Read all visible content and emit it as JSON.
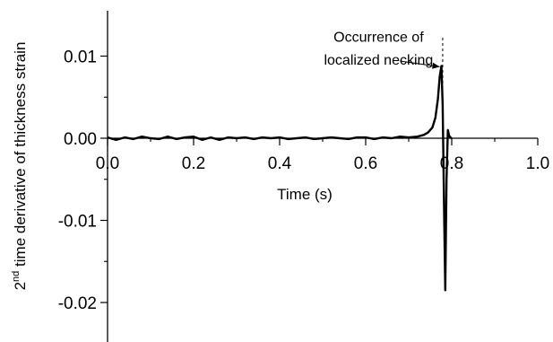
{
  "chart_data": {
    "type": "line",
    "xlabel": "Time (s)",
    "ylabel": {
      "prefix": "2",
      "superscript": "nd",
      "suffix": " time derivative of thickness strain"
    },
    "xlim": [
      0.0,
      1.0
    ],
    "ylim": [
      -0.0235,
      0.0155
    ],
    "x_ticks": [
      0.0,
      0.2,
      0.4,
      0.6,
      0.8,
      1.0
    ],
    "x_tick_labels": [
      "0.0",
      "0.2",
      "0.4",
      "0.6",
      "0.8",
      "1.0"
    ],
    "y_ticks": [
      0.01,
      0.0,
      -0.01,
      -0.02
    ],
    "y_tick_labels": [
      "0.01",
      "0.00",
      "-0.01",
      "-0.02"
    ],
    "grid": false,
    "series": [
      {
        "x": [
          0.0,
          0.02,
          0.04,
          0.06,
          0.08,
          0.1,
          0.12,
          0.14,
          0.16,
          0.18,
          0.2,
          0.22,
          0.24,
          0.26,
          0.28,
          0.3,
          0.32,
          0.34,
          0.36,
          0.38,
          0.4,
          0.42,
          0.44,
          0.46,
          0.48,
          0.5,
          0.52,
          0.54,
          0.56,
          0.58,
          0.6,
          0.62,
          0.64,
          0.66,
          0.68,
          0.7,
          0.72,
          0.735,
          0.745,
          0.755,
          0.762,
          0.768,
          0.772,
          0.776,
          0.779,
          0.782,
          0.785,
          0.788,
          0.791,
          0.794,
          0.797,
          0.8
        ],
        "y": [
          0.0001,
          -0.0002,
          0.0001,
          -0.0001,
          0.0002,
          0.0,
          -0.0001,
          0.0002,
          -0.0001,
          0.0001,
          0.0002,
          -0.0002,
          0.0001,
          -0.0002,
          0.0001,
          0.0,
          0.0001,
          -0.0001,
          0.0001,
          0.0,
          0.0001,
          -0.0001,
          0.0,
          0.0001,
          -0.0001,
          0.0,
          0.0001,
          0.0,
          -0.0001,
          0.0001,
          0.0001,
          -0.0001,
          0.0001,
          0.0,
          0.0002,
          0.0001,
          0.0002,
          0.0004,
          0.0007,
          0.0013,
          0.0025,
          0.0048,
          0.0075,
          0.0088,
          0.004,
          -0.008,
          -0.0185,
          -0.005,
          0.001,
          0.0003,
          0.0001,
          0.0
        ]
      }
    ],
    "annotations": [
      {
        "text": "Occurrence of",
        "x": 0.63,
        "y": 0.0124
      },
      {
        "text": "localized necking",
        "x": 0.63,
        "y": 0.0096
      }
    ],
    "marker_line_x": 0.779,
    "arrow": {
      "from": [
        0.68,
        0.0094
      ],
      "to": [
        0.772,
        0.0087
      ]
    }
  }
}
